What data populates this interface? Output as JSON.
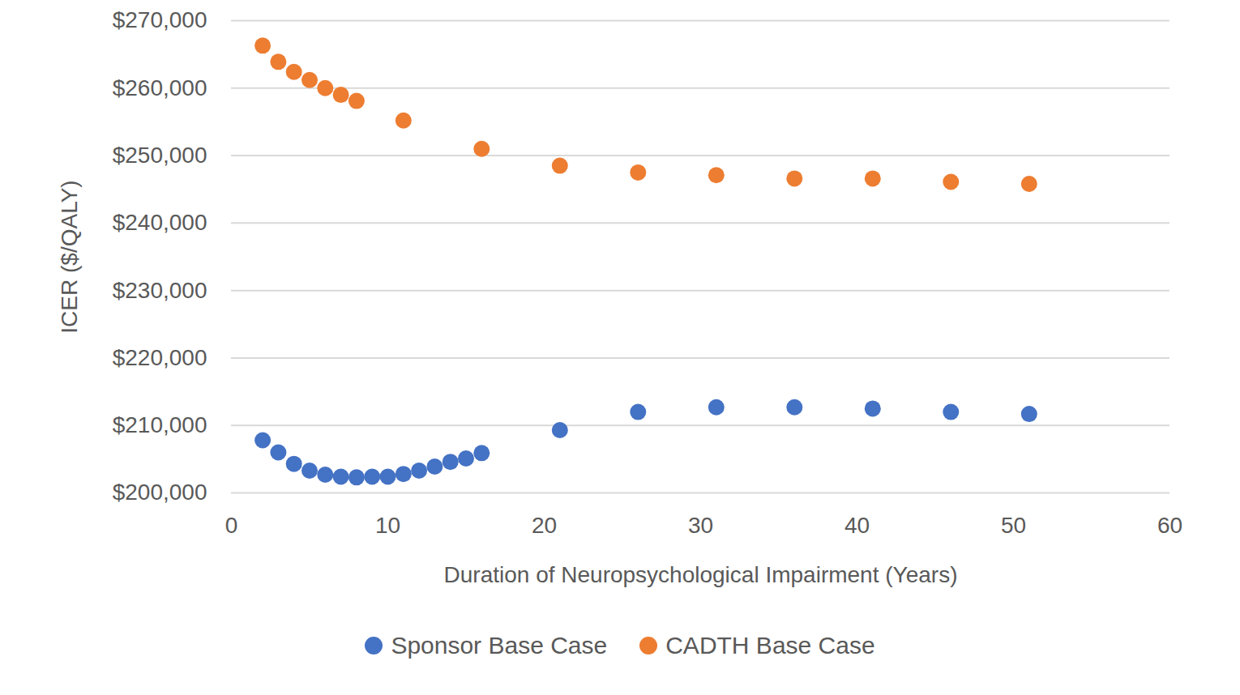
{
  "chart_data": {
    "type": "scatter",
    "xlabel": "Duration of Neuropsychological Impairment (Years)",
    "ylabel": "ICER ($/QALY)",
    "xlim": [
      0,
      60
    ],
    "xticks": [
      0,
      10,
      20,
      30,
      40,
      50,
      60
    ],
    "ylim": [
      200000,
      270000
    ],
    "yticks": [
      {
        "value": 200000,
        "label": "$200,000"
      },
      {
        "value": 210000,
        "label": "$210,000"
      },
      {
        "value": 220000,
        "label": "$220,000"
      },
      {
        "value": 230000,
        "label": "$230,000"
      },
      {
        "value": 240000,
        "label": "$240,000"
      },
      {
        "value": 250000,
        "label": "$250,000"
      },
      {
        "value": 260000,
        "label": "$260,000"
      },
      {
        "value": 270000,
        "label": "$270,000"
      }
    ],
    "grid": true,
    "legend": "bottom",
    "series": [
      {
        "name": "Sponsor Base Case",
        "color": "#4472c4",
        "marker": "circle",
        "x": [
          2,
          3,
          4,
          5,
          6,
          7,
          8,
          9,
          10,
          11,
          12,
          13,
          14,
          15,
          16,
          21,
          26,
          31,
          36,
          41,
          46,
          51
        ],
        "values": [
          207800,
          206000,
          204300,
          203300,
          202700,
          202400,
          202300,
          202400,
          202400,
          202800,
          203300,
          203900,
          204600,
          205100,
          205900,
          209300,
          212000,
          212700,
          212700,
          212500,
          212000,
          211700
        ]
      },
      {
        "name": "CADTH Base Case",
        "color": "#ed7d31",
        "marker": "circle",
        "x": [
          2,
          3,
          4,
          5,
          6,
          7,
          8,
          11,
          16,
          21,
          26,
          31,
          36,
          41,
          46,
          51
        ],
        "values": [
          266300,
          263900,
          262400,
          261200,
          260000,
          259000,
          258100,
          255200,
          251000,
          248500,
          247500,
          247100,
          246600,
          246600,
          246100,
          245800
        ]
      }
    ]
  }
}
